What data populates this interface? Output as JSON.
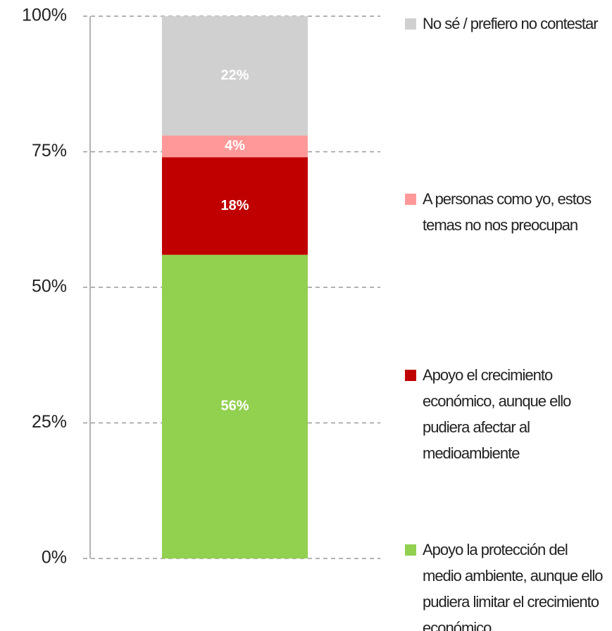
{
  "chart_data": {
    "type": "stacked_bar",
    "series": [
      {
        "name": "Apoyo la protección del medio ambiente, aunque ello pudiera limitar el crecimiento económico",
        "color": "#92d050",
        "values": [
          56
        ],
        "value_labels": [
          "56%"
        ]
      },
      {
        "name": "Apoyo el crecimiento económico, aunque ello pudiera afectar al medioambiente",
        "color": "#c00000",
        "values": [
          18
        ],
        "value_labels": [
          "18%"
        ]
      },
      {
        "name": "A personas como yo, estos temas no nos preocupan",
        "color": "#ff9999",
        "values": [
          4
        ],
        "value_labels": [
          "4%"
        ]
      },
      {
        "name": "No sé / prefiero no contestar",
        "color": "#d0d0d0",
        "values": [
          22
        ],
        "value_labels": [
          "22%"
        ]
      }
    ],
    "ylim": [
      0,
      100
    ],
    "yticks": [
      {
        "value": 0,
        "label": "0%"
      },
      {
        "value": 25,
        "label": "25%"
      },
      {
        "value": 50,
        "label": "50%"
      },
      {
        "value": 75,
        "label": "75%"
      },
      {
        "value": 100,
        "label": "100%"
      }
    ],
    "grid": true,
    "legend": "right"
  }
}
